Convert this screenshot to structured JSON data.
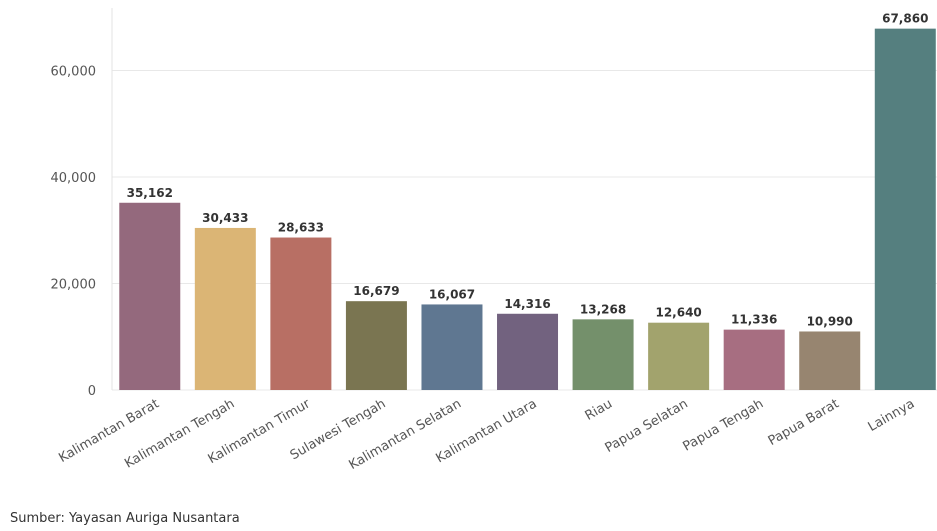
{
  "chart_data": {
    "type": "bar",
    "categories": [
      "Kalimantan Barat",
      "Kalimantan Tengah",
      "Kalimantan Timur",
      "Sulawesi Tengah",
      "Kalimantan Selatan",
      "Kalimantan Utara",
      "Riau",
      "Papua Selatan",
      "Papua Tengah",
      "Papua Barat",
      "Lainnya"
    ],
    "values": [
      35162,
      30433,
      28633,
      16679,
      16067,
      14316,
      13268,
      12640,
      11336,
      10990,
      67860
    ],
    "value_labels": [
      "35,162",
      "30,433",
      "28,633",
      "16,679",
      "16,067",
      "14,316",
      "13,268",
      "12,640",
      "11,336",
      "10,990",
      "67,860"
    ],
    "colors": [
      "#94697d",
      "#dbb575",
      "#b86f64",
      "#7a7551",
      "#5f7791",
      "#72627f",
      "#74906b",
      "#a2a36d",
      "#a76e81",
      "#978570",
      "#557f7f"
    ],
    "yticks": [
      0,
      20000,
      40000,
      60000
    ],
    "ytick_labels": [
      "0",
      "20,000",
      "40,000",
      "60,000"
    ],
    "ylim": [
      0,
      70000
    ],
    "grid": true,
    "title": "",
    "xlabel": "",
    "ylabel": ""
  },
  "source": "Sumber: Yayasan Auriga Nusantara"
}
